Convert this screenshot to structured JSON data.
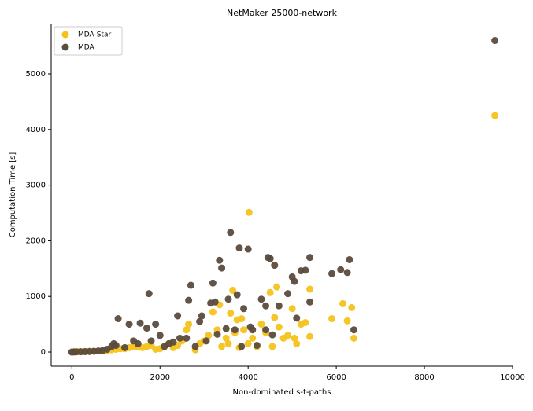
{
  "chart_data": {
    "type": "scatter",
    "title": "NetMaker 25000-network",
    "x_label": "Non-dominated s-t-paths",
    "y_label": "Computation Time [s]",
    "xlim": [
      -470,
      10000
    ],
    "ylim": [
      -254,
      5904
    ],
    "xticks": [
      0,
      2000,
      4000,
      6000,
      8000,
      10000
    ],
    "yticks": [
      0,
      1000,
      2000,
      3000,
      4000,
      5000
    ],
    "legend_loc": "upper left",
    "series": [
      {
        "name": "MDA-Star",
        "color": "#f5c21b",
        "x": [
          0,
          50,
          100,
          150,
          200,
          300,
          400,
          500,
          600,
          700,
          800,
          900,
          1000,
          1100,
          1200,
          1300,
          1400,
          1500,
          1600,
          1700,
          1800,
          1900,
          2000,
          2100,
          2200,
          2300,
          2400,
          2500,
          2600,
          2650,
          2800,
          2900,
          3000,
          3100,
          3200,
          3300,
          3350,
          3400,
          3500,
          3550,
          3600,
          3650,
          3700,
          3750,
          3800,
          3850,
          3900,
          4000,
          4020,
          4100,
          4200,
          4300,
          4400,
          4500,
          4550,
          4600,
          4650,
          4700,
          4800,
          4900,
          5000,
          5050,
          5100,
          5200,
          5300,
          5400,
          5400,
          5900,
          6150,
          6250,
          6350,
          6400,
          9600
        ],
        "values": [
          0,
          5,
          5,
          8,
          5,
          10,
          10,
          15,
          20,
          20,
          30,
          40,
          50,
          60,
          60,
          80,
          100,
          90,
          80,
          100,
          120,
          50,
          60,
          100,
          150,
          80,
          120,
          200,
          400,
          500,
          40,
          150,
          200,
          300,
          720,
          400,
          850,
          100,
          250,
          150,
          700,
          1110,
          350,
          580,
          80,
          600,
          400,
          150,
          2510,
          250,
          100,
          500,
          350,
          1070,
          100,
          620,
          1170,
          450,
          250,
          300,
          780,
          250,
          150,
          500,
          530,
          280,
          1130,
          600,
          870,
          560,
          800,
          250,
          4250
        ]
      },
      {
        "name": "MDA",
        "color": "#5b4b3d",
        "x": [
          0,
          50,
          100,
          200,
          300,
          400,
          500,
          600,
          700,
          800,
          900,
          950,
          1000,
          1050,
          1200,
          1300,
          1400,
          1500,
          1550,
          1700,
          1750,
          1800,
          1900,
          2000,
          2100,
          2200,
          2300,
          2400,
          2450,
          2600,
          2650,
          2700,
          2800,
          2900,
          2950,
          3050,
          3150,
          3200,
          3250,
          3300,
          3350,
          3400,
          3500,
          3550,
          3600,
          3700,
          3750,
          3800,
          3850,
          3900,
          4000,
          4050,
          4100,
          4200,
          4300,
          4400,
          4450,
          4500,
          4600,
          4700,
          4900,
          5000,
          5050,
          5100,
          5200,
          5300,
          5400,
          5400,
          5900,
          6100,
          6250,
          6300,
          6400,
          9600,
          4550,
          4400
        ],
        "values": [
          0,
          2,
          3,
          5,
          8,
          10,
          15,
          20,
          30,
          50,
          100,
          150,
          120,
          600,
          80,
          500,
          200,
          150,
          520,
          430,
          1050,
          200,
          500,
          300,
          100,
          150,
          180,
          650,
          250,
          250,
          930,
          1200,
          100,
          550,
          650,
          200,
          880,
          1240,
          900,
          320,
          1650,
          1510,
          420,
          950,
          2150,
          400,
          1030,
          1870,
          100,
          780,
          1850,
          450,
          400,
          120,
          950,
          400,
          1700,
          1680,
          1560,
          830,
          1050,
          1350,
          1270,
          610,
          1460,
          1470,
          1700,
          900,
          1410,
          1480,
          1430,
          1660,
          400,
          5600,
          310,
          830
        ]
      }
    ]
  }
}
